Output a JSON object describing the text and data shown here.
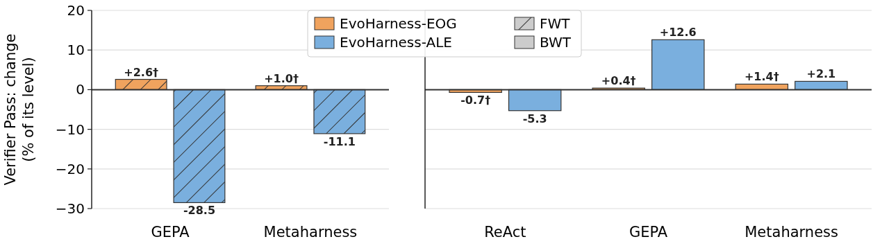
{
  "chart_data": [
    {
      "type": "bar",
      "categories": [
        "GEPA",
        "Metaharness"
      ],
      "ylabel": "Verifier Pass: change\n(% of its level)",
      "ylim": [
        -30,
        20
      ],
      "yticks": [
        {
          "value": -30,
          "label": "−30"
        },
        {
          "value": -20,
          "label": "−20"
        },
        {
          "value": -10,
          "label": "−10"
        },
        0,
        10,
        20
      ],
      "grid": "y",
      "legend": "top",
      "annotations": [
        "FWT"
      ],
      "series": [
        {
          "name": "EvoHarness-EOG",
          "color": "#f0a35e",
          "values": [
            2.6,
            1.0
          ],
          "value_labels": [
            "+2.6†",
            "+1.0†"
          ]
        },
        {
          "name": "EvoHarness-ALE",
          "color": "#7aafde",
          "values": [
            -28.5,
            -11.1
          ],
          "value_labels": [
            "-28.5",
            "-11.1"
          ]
        }
      ]
    },
    {
      "type": "bar",
      "categories": [
        "ReAct",
        "GEPA",
        "Metaharness"
      ],
      "ylim": [
        -30,
        20
      ],
      "yticks": [
        -30,
        -20,
        -10,
        0,
        10,
        20
      ],
      "grid": "y",
      "tick_labels": "x",
      "annotations": [
        "BWT"
      ],
      "series": [
        {
          "color": "#f0a35e",
          "values": [
            -0.7,
            0.4,
            1.4
          ],
          "value_labels": [
            "-0.7†",
            "+0.4†",
            "+1.4†"
          ]
        },
        {
          "color": "#7aafde",
          "values": [
            -5.3,
            12.6,
            2.1
          ],
          "value_labels": [
            "-5.3",
            "+12.6",
            "+2.1"
          ]
        }
      ]
    }
  ]
}
